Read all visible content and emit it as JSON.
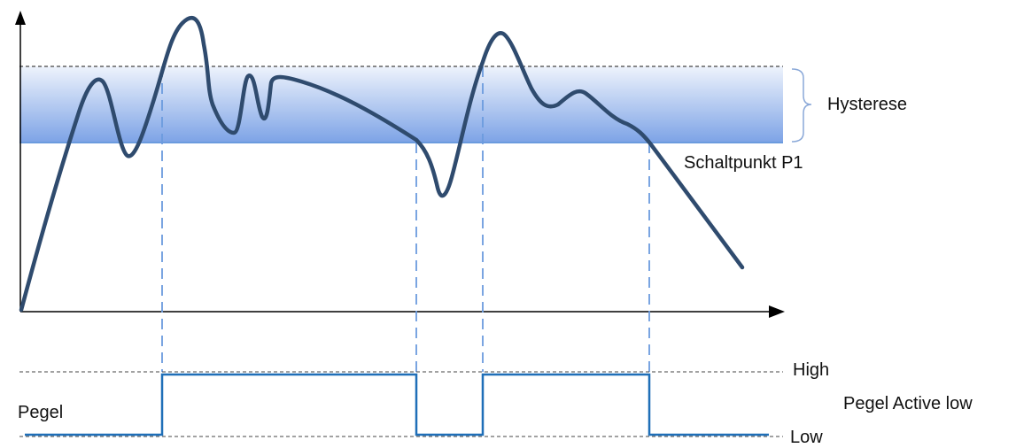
{
  "labels": {
    "hysteresis": "Hysterese",
    "switch_point": "Schaltpunkt P1",
    "high": "High",
    "low": "Low",
    "level": "Pegel",
    "level_mode": "Pegel Active low"
  },
  "colors": {
    "signal": "#2f4b6e",
    "band_top": "#e6eefb",
    "band_bottom": "#7da3e6",
    "switch_line": "#6b9bde",
    "output": "#1f6fb8",
    "axis": "#000000",
    "dash": "#444444"
  }
}
